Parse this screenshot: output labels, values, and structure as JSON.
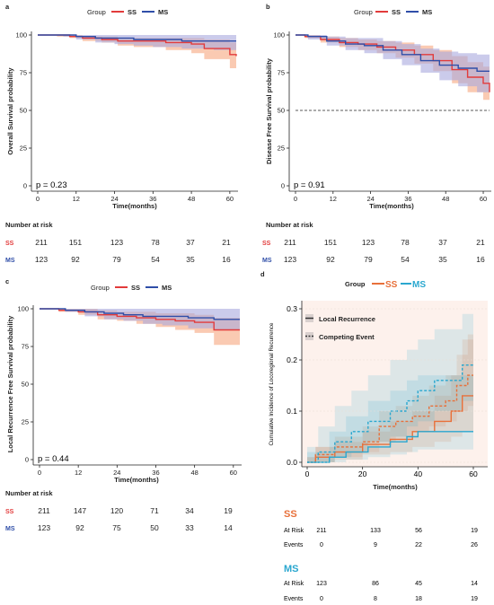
{
  "colors": {
    "ss": "#e23b3b",
    "ms": "#2f4ea8",
    "ss_band": "#f7a77f",
    "ms_band": "#a9a8dd",
    "d_ss": "#e8703a",
    "d_ms": "#2aa7cf",
    "d_bg": "#fdf1ec"
  },
  "panels": [
    {
      "letter": "a",
      "ylabel": "Overall Survival probability",
      "xlabel": "Time(months)",
      "pvalue": "p = 0.23",
      "legend": {
        "title": "Group",
        "ss": "SS",
        "ms": "MS"
      },
      "yticks": [
        "0",
        "25",
        "50",
        "75",
        "100"
      ],
      "xticks": [
        "0",
        "12",
        "24",
        "36",
        "48",
        "60"
      ],
      "risk_title": "Number at risk",
      "ss_label": "SS",
      "ms_label": "MS",
      "ss_risk": [
        "211",
        "151",
        "123",
        "78",
        "37",
        "21"
      ],
      "ms_risk": [
        "123",
        "92",
        "79",
        "54",
        "35",
        "16"
      ]
    },
    {
      "letter": "b",
      "ylabel": "Disease Free Survival probability",
      "xlabel": "Time(months)",
      "pvalue": "p = 0.91",
      "legend": {
        "title": "Group",
        "ss": "SS",
        "ms": "MS"
      },
      "yticks": [
        "0",
        "25",
        "50",
        "75",
        "100"
      ],
      "xticks": [
        "0",
        "12",
        "24",
        "36",
        "48",
        "60"
      ],
      "risk_title": "Number at risk",
      "ss_label": "SS",
      "ms_label": "MS",
      "ss_risk": [
        "211",
        "151",
        "123",
        "78",
        "37",
        "21"
      ],
      "ms_risk": [
        "123",
        "92",
        "79",
        "54",
        "35",
        "16"
      ]
    },
    {
      "letter": "c",
      "ylabel": "Local Recurrence Free Survival probability",
      "xlabel": "Time(months)",
      "pvalue": "p = 0.44",
      "legend": {
        "title": "Group",
        "ss": "SS",
        "ms": "MS"
      },
      "yticks": [
        "0",
        "25",
        "50",
        "75",
        "100"
      ],
      "xticks": [
        "0",
        "12",
        "24",
        "36",
        "48",
        "60"
      ],
      "risk_title": "Number at risk",
      "ss_label": "SS",
      "ms_label": "MS",
      "ss_risk": [
        "211",
        "147",
        "120",
        "71",
        "34",
        "19"
      ],
      "ms_risk": [
        "123",
        "92",
        "75",
        "50",
        "33",
        "14"
      ]
    }
  ],
  "panel_d": {
    "letter": "d",
    "legend": {
      "title": "Group",
      "ss": "SS",
      "ms": "MS"
    },
    "line_legend": {
      "solid": "Local Recurrence",
      "dashed": "Competing Event"
    },
    "ylabel": "Cumulative Incidence of Locoregional Recurrence",
    "xlabel": "Time(months)",
    "yticks": [
      "0.0",
      "0.1",
      "0.2",
      "0.3"
    ],
    "xticks": [
      "0",
      "20",
      "40",
      "60"
    ],
    "ss_title": "SS",
    "ms_title": "MS",
    "row_labels": {
      "at_risk": "At Risk",
      "events": "Events"
    },
    "ss_at_risk": [
      "211",
      "133",
      "56",
      "19"
    ],
    "ss_events": [
      "0",
      "9",
      "22",
      "26"
    ],
    "ms_at_risk": [
      "123",
      "86",
      "45",
      "14"
    ],
    "ms_events": [
      "0",
      "8",
      "18",
      "19"
    ]
  },
  "chart_data": [
    {
      "type": "line",
      "panel": "a",
      "xlabel": "Time(months)",
      "ylabel": "Overall Survival probability",
      "xlim": [
        0,
        62
      ],
      "ylim": [
        0,
        100
      ],
      "series": [
        {
          "name": "SS",
          "x": [
            0,
            6,
            10,
            14,
            20,
            25,
            30,
            40,
            48,
            52,
            60,
            62
          ],
          "y": [
            100,
            100,
            99,
            98,
            97,
            96,
            96,
            95,
            94,
            91,
            87,
            86
          ],
          "ci_low": [
            100,
            99,
            98,
            96,
            95,
            93,
            92,
            90,
            88,
            84,
            78,
            77
          ],
          "ci_high": [
            100,
            100,
            100,
            99,
            99,
            98,
            98,
            98,
            98,
            97,
            95,
            95
          ]
        },
        {
          "name": "MS",
          "x": [
            0,
            8,
            12,
            18,
            24,
            30,
            36,
            45,
            55,
            62
          ],
          "y": [
            100,
            100,
            99,
            98,
            98,
            97,
            97,
            96,
            96,
            96
          ],
          "ci_low": [
            100,
            99,
            97,
            95,
            94,
            93,
            92,
            91,
            90,
            89
          ],
          "ci_high": [
            100,
            100,
            100,
            100,
            100,
            100,
            100,
            100,
            100,
            100
          ]
        }
      ]
    },
    {
      "type": "line",
      "panel": "b",
      "xlabel": "Time(months)",
      "ylabel": "Disease Free Survival probability",
      "xlim": [
        0,
        62
      ],
      "ylim": [
        0,
        100
      ],
      "reference_line": 50,
      "series": [
        {
          "name": "SS",
          "x": [
            0,
            3,
            8,
            14,
            20,
            26,
            32,
            38,
            44,
            50,
            55,
            60,
            62
          ],
          "y": [
            100,
            99,
            97,
            95,
            94,
            92,
            90,
            87,
            83,
            77,
            72,
            68,
            62
          ],
          "ci_low": [
            100,
            98,
            95,
            92,
            90,
            88,
            85,
            81,
            76,
            68,
            62,
            57,
            50
          ],
          "ci_high": [
            100,
            100,
            99,
            98,
            97,
            96,
            95,
            93,
            90,
            86,
            82,
            79,
            74
          ]
        },
        {
          "name": "MS",
          "x": [
            0,
            4,
            10,
            16,
            22,
            28,
            34,
            40,
            46,
            52,
            58,
            62
          ],
          "y": [
            100,
            99,
            96,
            94,
            93,
            90,
            87,
            83,
            80,
            78,
            76,
            76
          ],
          "ci_low": [
            100,
            97,
            93,
            90,
            88,
            84,
            80,
            75,
            70,
            66,
            62,
            60
          ],
          "ci_high": [
            100,
            100,
            99,
            98,
            98,
            96,
            94,
            91,
            89,
            88,
            87,
            87
          ]
        }
      ]
    },
    {
      "type": "line",
      "panel": "c",
      "xlabel": "Time(months)",
      "ylabel": "Local Recurrence Free Survival probability",
      "xlim": [
        0,
        62
      ],
      "ylim": [
        0,
        100
      ],
      "series": [
        {
          "name": "SS",
          "x": [
            0,
            6,
            12,
            18,
            24,
            30,
            36,
            42,
            48,
            54,
            62
          ],
          "y": [
            100,
            99,
            98,
            96,
            95,
            94,
            93,
            92,
            91,
            86,
            86
          ],
          "ci_low": [
            100,
            98,
            96,
            93,
            92,
            90,
            88,
            86,
            84,
            76,
            75
          ],
          "ci_high": [
            100,
            100,
            100,
            99,
            98,
            98,
            97,
            97,
            96,
            94,
            94
          ]
        },
        {
          "name": "MS",
          "x": [
            0,
            8,
            14,
            20,
            26,
            32,
            38,
            46,
            54,
            62
          ],
          "y": [
            100,
            99,
            98,
            97,
            96,
            95,
            95,
            94,
            93,
            93
          ],
          "ci_low": [
            100,
            98,
            95,
            93,
            92,
            90,
            89,
            87,
            86,
            85
          ],
          "ci_high": [
            100,
            100,
            100,
            100,
            100,
            100,
            100,
            100,
            100,
            100
          ]
        }
      ]
    },
    {
      "type": "line",
      "panel": "d",
      "xlabel": "Time(months)",
      "ylabel": "Cumulative Incidence of Locoregional Recurrence",
      "xlim": [
        0,
        60
      ],
      "ylim": [
        0,
        0.3
      ],
      "series": [
        {
          "name": "SS Local Recurrence",
          "x": [
            0,
            3,
            10,
            20,
            30,
            38,
            46,
            52,
            56,
            60
          ],
          "y": [
            0,
            0.01,
            0.02,
            0.035,
            0.045,
            0.06,
            0.08,
            0.1,
            0.13,
            0.13
          ],
          "ci_low": [
            0,
            0,
            0.005,
            0.015,
            0.02,
            0.03,
            0.04,
            0.05,
            0.06,
            0.06
          ],
          "ci_high": [
            0.01,
            0.03,
            0.04,
            0.06,
            0.08,
            0.1,
            0.13,
            0.17,
            0.24,
            0.28
          ]
        },
        {
          "name": "SS Competing Event",
          "x": [
            0,
            3,
            10,
            20,
            26,
            32,
            38,
            44,
            50,
            54,
            58,
            60
          ],
          "y": [
            0,
            0.015,
            0.03,
            0.04,
            0.07,
            0.08,
            0.09,
            0.11,
            0.12,
            0.15,
            0.17,
            0.17
          ],
          "ci_low": [
            0,
            0,
            0.01,
            0.02,
            0.04,
            0.05,
            0.06,
            0.07,
            0.08,
            0.1,
            0.11,
            0.11
          ],
          "ci_high": [
            0.01,
            0.03,
            0.05,
            0.07,
            0.1,
            0.11,
            0.13,
            0.15,
            0.17,
            0.21,
            0.25,
            0.25
          ]
        },
        {
          "name": "MS Local Recurrence",
          "x": [
            0,
            8,
            14,
            22,
            30,
            36,
            40,
            50,
            60
          ],
          "y": [
            0,
            0.01,
            0.02,
            0.03,
            0.04,
            0.05,
            0.06,
            0.06,
            0.06
          ],
          "ci_low": [
            0,
            0,
            0.005,
            0.01,
            0.015,
            0.02,
            0.025,
            0.025,
            0.025
          ],
          "ci_high": [
            0.02,
            0.06,
            0.09,
            0.12,
            0.14,
            0.16,
            0.17,
            0.17,
            0.17
          ]
        },
        {
          "name": "MS Competing Event",
          "x": [
            0,
            4,
            10,
            16,
            22,
            30,
            36,
            40,
            46,
            52,
            56,
            60
          ],
          "y": [
            0,
            0.02,
            0.04,
            0.06,
            0.08,
            0.1,
            0.12,
            0.14,
            0.16,
            0.16,
            0.19,
            0.19
          ],
          "ci_low": [
            0,
            0,
            0.01,
            0.02,
            0.04,
            0.05,
            0.07,
            0.08,
            0.1,
            0.1,
            0.12,
            0.12
          ],
          "ci_high": [
            0.03,
            0.07,
            0.11,
            0.14,
            0.17,
            0.2,
            0.22,
            0.24,
            0.26,
            0.26,
            0.29,
            0.29
          ]
        }
      ]
    }
  ]
}
